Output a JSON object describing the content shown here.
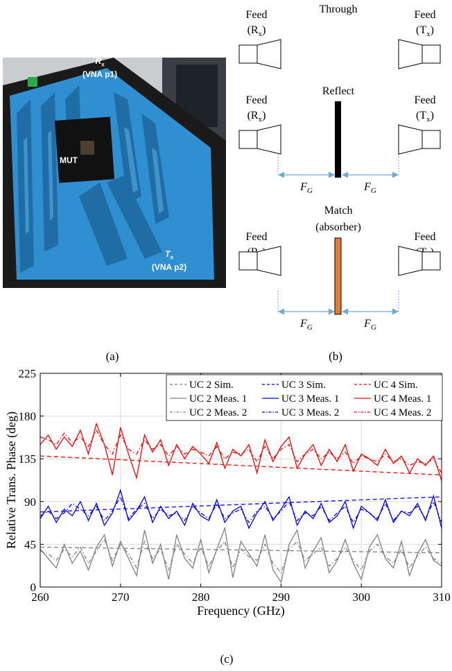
{
  "panel_a": {
    "caption": "(a)",
    "labels": {
      "rx_name": "R",
      "rx_sub": "x",
      "rx_port": "(VNA p1)",
      "mut": "MUT",
      "tx_name": "T",
      "tx_sub": "x",
      "tx_port": "(VNA p2)"
    },
    "colors": {
      "absorber": "#2f8fd0",
      "absorber_dark": "#1a5f95",
      "foam": "#1a1a1a"
    }
  },
  "panel_b": {
    "caption": "(b)",
    "through_label": "Through",
    "reflect_label": "Reflect",
    "match_label": "Match",
    "match_sub": "(absorber)",
    "feed_label": "Feed",
    "rx": "(R",
    "tx": "(T",
    "sub_x": "x",
    "close_paren": ")",
    "fg": "F",
    "fg_sub": "G",
    "colors": {
      "reflector": "#000000",
      "absorber": "#e07b39",
      "arrow": "#6fa8d6"
    }
  },
  "panel_c": {
    "caption": "(c)"
  },
  "chart_data": {
    "type": "line",
    "xlabel": "Frequency (GHz)",
    "ylabel": "Relative Trans. Phase (deg)",
    "xlim": [
      260,
      310
    ],
    "ylim": [
      0,
      225
    ],
    "xticks": [
      "260",
      "270",
      "280",
      "290",
      "300",
      "310"
    ],
    "yticks": [
      "0",
      "45",
      "90",
      "135",
      "180",
      "225"
    ],
    "grid": true,
    "legend_position": "top-right",
    "series": [
      {
        "name": "UC 2 Sim.",
        "color": "#808080",
        "style": "dashed",
        "x": [
          260,
          310
        ],
        "y": [
          42,
          36
        ]
      },
      {
        "name": "UC 3 Sim.",
        "color": "#0000ff",
        "style": "dashed",
        "x": [
          260,
          310
        ],
        "y": [
          79,
          95
        ]
      },
      {
        "name": "UC 4 Sim.",
        "color": "#ff0000",
        "style": "dashed",
        "x": [
          260,
          310
        ],
        "y": [
          138,
          118
        ]
      },
      {
        "name": "UC 2 Meas. 1",
        "color": "#808080",
        "style": "solid",
        "x": [
          260,
          261,
          262,
          263,
          264,
          265,
          266,
          267,
          268,
          269,
          270,
          271,
          272,
          273,
          274,
          275,
          276,
          277,
          278,
          279,
          280,
          281,
          282,
          283,
          284,
          285,
          286,
          287,
          288,
          289,
          290,
          291,
          292,
          293,
          294,
          295,
          296,
          297,
          298,
          299,
          300,
          301,
          302,
          303,
          304,
          305,
          306,
          307,
          308,
          309,
          310
        ],
        "y": [
          40,
          30,
          20,
          45,
          25,
          38,
          18,
          42,
          55,
          22,
          48,
          30,
          12,
          60,
          25,
          45,
          8,
          55,
          30,
          20,
          50,
          15,
          40,
          62,
          10,
          48,
          35,
          22,
          55,
          18,
          5,
          45,
          60,
          20,
          38,
          52,
          15,
          28,
          50,
          25,
          8,
          42,
          55,
          30,
          20,
          48,
          12,
          35,
          50,
          28,
          22
        ]
      },
      {
        "name": "UC 2 Meas. 2",
        "color": "#808080",
        "style": "dashdot",
        "x": [
          260,
          261,
          262,
          263,
          264,
          265,
          266,
          267,
          268,
          269,
          270,
          271,
          272,
          273,
          274,
          275,
          276,
          277,
          278,
          279,
          280,
          281,
          282,
          283,
          284,
          285,
          286,
          287,
          288,
          289,
          290,
          291,
          292,
          293,
          294,
          295,
          296,
          297,
          298,
          299,
          300,
          301,
          302,
          303,
          304,
          305,
          306,
          307,
          308,
          309,
          310
        ],
        "y": [
          38,
          35,
          28,
          40,
          32,
          42,
          25,
          38,
          50,
          28,
          45,
          35,
          20,
          48,
          30,
          40,
          18,
          45,
          35,
          25,
          42,
          22,
          38,
          48,
          20,
          40,
          32,
          28,
          45,
          25,
          15,
          40,
          48,
          28,
          35,
          42,
          22,
          30,
          42,
          28,
          18,
          38,
          45,
          32,
          25,
          40,
          20,
          33,
          42,
          30,
          25
        ]
      },
      {
        "name": "UC 3 Meas. 1",
        "color": "#0000ff",
        "style": "solid",
        "x": [
          260,
          261,
          262,
          263,
          264,
          265,
          266,
          267,
          268,
          269,
          270,
          271,
          272,
          273,
          274,
          275,
          276,
          277,
          278,
          279,
          280,
          281,
          282,
          283,
          284,
          285,
          286,
          287,
          288,
          289,
          290,
          291,
          292,
          293,
          294,
          295,
          296,
          297,
          298,
          299,
          300,
          301,
          302,
          303,
          304,
          305,
          306,
          307,
          308,
          309,
          310
        ],
        "y": [
          72,
          85,
          68,
          82,
          75,
          90,
          70,
          88,
          65,
          78,
          102,
          70,
          80,
          95,
          68,
          85,
          72,
          80,
          65,
          88,
          75,
          70,
          92,
          68,
          80,
          85,
          62,
          78,
          90,
          70,
          82,
          95,
          65,
          80,
          72,
          88,
          68,
          75,
          90,
          62,
          85,
          78,
          70,
          92,
          68,
          80,
          75,
          88,
          70,
          96,
          62
        ]
      },
      {
        "name": "UC 3 Meas. 2",
        "color": "#0000ff",
        "style": "dashdot",
        "x": [
          260,
          261,
          262,
          263,
          264,
          265,
          266,
          267,
          268,
          269,
          270,
          271,
          272,
          273,
          274,
          275,
          276,
          277,
          278,
          279,
          280,
          281,
          282,
          283,
          284,
          285,
          286,
          287,
          288,
          289,
          290,
          291,
          292,
          293,
          294,
          295,
          296,
          297,
          298,
          299,
          300,
          301,
          302,
          303,
          304,
          305,
          306,
          307,
          308,
          309,
          310
        ],
        "y": [
          75,
          80,
          72,
          78,
          88,
          82,
          75,
          85,
          70,
          80,
          95,
          72,
          82,
          88,
          72,
          82,
          75,
          78,
          70,
          85,
          78,
          72,
          88,
          72,
          78,
          82,
          68,
          80,
          85,
          72,
          80,
          90,
          70,
          78,
          75,
          85,
          70,
          78,
          85,
          68,
          82,
          78,
          72,
          88,
          70,
          80,
          78,
          85,
          72,
          90,
          68
        ]
      },
      {
        "name": "UC 4 Meas. 1",
        "color": "#ff0000",
        "style": "solid",
        "x": [
          260,
          261,
          262,
          263,
          264,
          265,
          266,
          267,
          268,
          269,
          270,
          271,
          272,
          273,
          274,
          275,
          276,
          277,
          278,
          279,
          280,
          281,
          282,
          283,
          284,
          285,
          286,
          287,
          288,
          289,
          290,
          291,
          292,
          293,
          294,
          295,
          296,
          297,
          298,
          299,
          300,
          301,
          302,
          303,
          304,
          305,
          306,
          307,
          308,
          309,
          310
        ],
        "y": [
          150,
          160,
          145,
          158,
          148,
          165,
          140,
          172,
          150,
          118,
          168,
          140,
          115,
          160,
          142,
          155,
          128,
          150,
          135,
          148,
          140,
          130,
          152,
          125,
          145,
          138,
          150,
          120,
          155,
          132,
          148,
          158,
          125,
          140,
          150,
          128,
          145,
          132,
          150,
          122,
          140,
          135,
          128,
          145,
          130,
          138,
          120,
          135,
          128,
          138,
          112
        ]
      },
      {
        "name": "UC 4 Meas. 2",
        "color": "#ff0000",
        "style": "dashdot",
        "x": [
          260,
          261,
          262,
          263,
          264,
          265,
          266,
          267,
          268,
          269,
          270,
          271,
          272,
          273,
          274,
          275,
          276,
          277,
          278,
          279,
          280,
          281,
          282,
          283,
          284,
          285,
          286,
          287,
          288,
          289,
          290,
          291,
          292,
          293,
          294,
          295,
          296,
          297,
          298,
          299,
          300,
          301,
          302,
          303,
          304,
          305,
          306,
          307,
          308,
          309,
          310
        ],
        "y": [
          158,
          155,
          150,
          162,
          152,
          158,
          148,
          165,
          150,
          140,
          160,
          145,
          140,
          155,
          145,
          150,
          138,
          148,
          140,
          145,
          142,
          138,
          148,
          135,
          142,
          140,
          145,
          132,
          148,
          135,
          145,
          150,
          132,
          140,
          145,
          135,
          142,
          135,
          142,
          130,
          138,
          135,
          132,
          140,
          132,
          135,
          128,
          132,
          130,
          135,
          120
        ]
      }
    ]
  }
}
